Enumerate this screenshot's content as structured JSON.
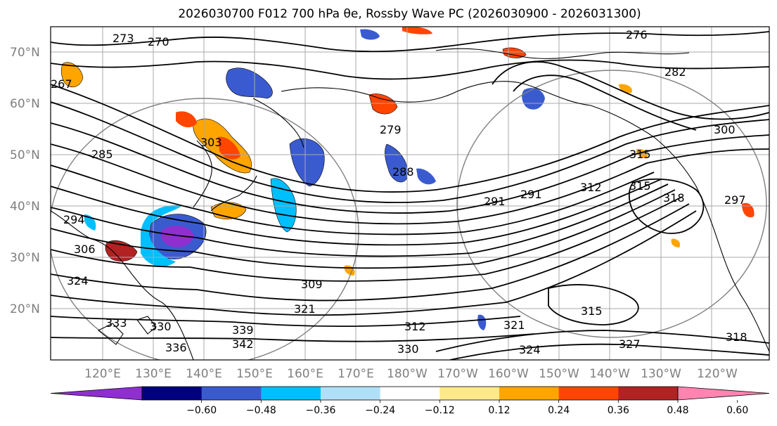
{
  "title": "2026030700 F012 700 hPa θe, Rossby Wave PC (2026030900 - 2026031300)",
  "latitude_labels": [
    "70°N",
    "60°N",
    "50°N",
    "40°N",
    "30°N",
    "20°N"
  ],
  "longitude_labels": [
    "120°E",
    "130°E",
    "140°E",
    "150°E",
    "160°E",
    "170°E",
    "180°W",
    "170°W",
    "160°W",
    "150°W",
    "140°W",
    "130°W",
    "120°W"
  ],
  "colorbar": {
    "ticks": [
      "−0.60",
      "−0.48",
      "−0.36",
      "−0.24",
      "−0.12",
      "0.12",
      "0.24",
      "0.36",
      "0.48",
      "0.60"
    ],
    "colors": [
      "#8f2fcf",
      "#000080",
      "#3a5bd0",
      "#00bfff",
      "#b0e0f8",
      "#ffffff",
      "#fde98a",
      "#ffa500",
      "#ff4500",
      "#b22222",
      "#ff85b0"
    ]
  },
  "contour_labels": [
    "273",
    "270",
    "276",
    "267",
    "282",
    "279",
    "285",
    "288",
    "291",
    "291",
    "294",
    "297",
    "300",
    "303",
    "306",
    "309",
    "312",
    "312",
    "315",
    "315",
    "315",
    "318",
    "318",
    "321",
    "321",
    "324",
    "324",
    "327",
    "330",
    "330",
    "333",
    "336",
    "339",
    "342"
  ]
}
